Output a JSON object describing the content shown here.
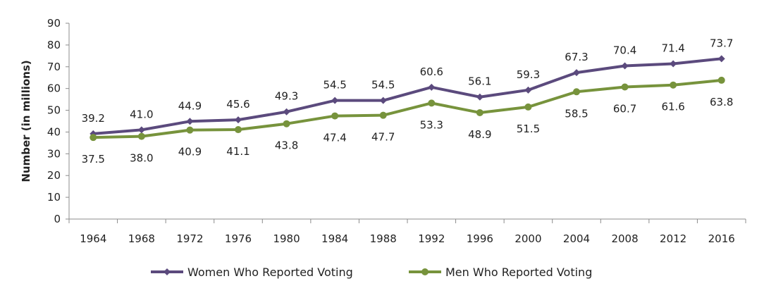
{
  "chart_data": {
    "type": "line",
    "title": "",
    "xlabel": "",
    "ylabel": "Number (in millions)",
    "ylim": [
      0,
      90
    ],
    "yticks": [
      0,
      10,
      20,
      30,
      40,
      50,
      60,
      70,
      80,
      90
    ],
    "grid": false,
    "legend_position": "bottom",
    "categories": [
      "1964",
      "1968",
      "1972",
      "1976",
      "1980",
      "1984",
      "1988",
      "1992",
      "1996",
      "2000",
      "2004",
      "2008",
      "2012",
      "2016"
    ],
    "series": [
      {
        "name": "Women Who Reported Voting",
        "color": "#5b4a7d",
        "marker": "diamond",
        "label_position": "above",
        "values": [
          39.2,
          41.0,
          44.9,
          45.6,
          49.3,
          54.5,
          54.5,
          60.6,
          56.1,
          59.3,
          67.3,
          70.4,
          71.4,
          73.7
        ],
        "labels": [
          "39.2",
          "41.0",
          "44.9",
          "45.6",
          "49.3",
          "54.5",
          "54.5",
          "60.6",
          "56.1",
          "59.3",
          "67.3",
          "70.4",
          "71.4",
          "73.7"
        ]
      },
      {
        "name": "Men Who Reported Voting",
        "color": "#77933c",
        "marker": "circle",
        "label_position": "below",
        "values": [
          37.5,
          38.0,
          40.9,
          41.1,
          43.8,
          47.4,
          47.7,
          53.3,
          48.9,
          51.5,
          58.5,
          60.7,
          61.6,
          63.8
        ],
        "labels": [
          "37.5",
          "38.0",
          "40.9",
          "41.1",
          "43.8",
          "47.4",
          "47.7",
          "53.3",
          "48.9",
          "51.5",
          "58.5",
          "60.7",
          "61.6",
          "63.8"
        ]
      }
    ]
  }
}
